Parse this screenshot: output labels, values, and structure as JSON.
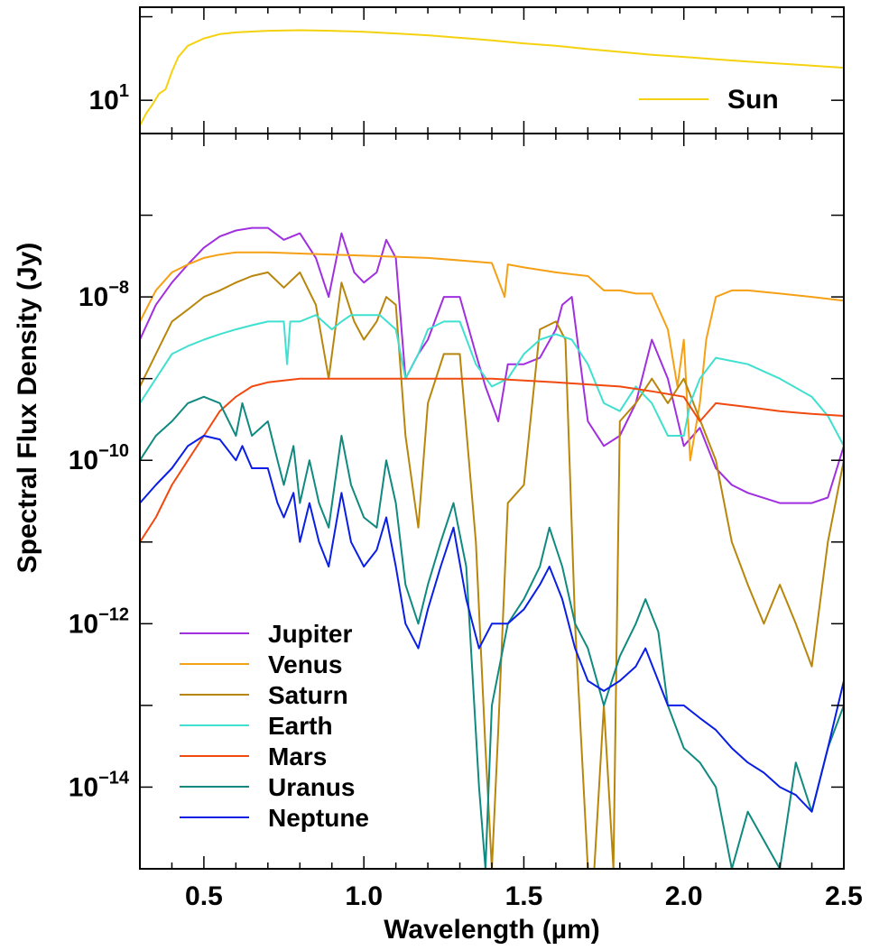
{
  "chart_data": [
    {
      "panel": "top",
      "type": "line",
      "xlabel": "",
      "ylabel": "",
      "xlim": [
        0.3,
        2.5
      ],
      "yscale": "log",
      "ylim": [
        4,
        130
      ],
      "ytick_labels": [
        {
          "value": 10,
          "base": "10",
          "exp": "1"
        }
      ],
      "legend": {
        "placement": "bottom-right",
        "entries": [
          {
            "label": "Sun",
            "color": "#F5D20F"
          }
        ]
      },
      "series": [
        {
          "name": "Sun",
          "color": "#F5D20F",
          "x": [
            0.3,
            0.32,
            0.34,
            0.36,
            0.38,
            0.4,
            0.42,
            0.45,
            0.5,
            0.55,
            0.6,
            0.7,
            0.8,
            0.9,
            1.0,
            1.1,
            1.2,
            1.3,
            1.4,
            1.5,
            1.6,
            1.7,
            1.8,
            1.9,
            2.0,
            2.1,
            2.2,
            2.3,
            2.4,
            2.5
          ],
          "values": [
            5,
            7,
            9,
            12,
            13.5,
            22,
            33,
            45,
            55,
            62,
            65,
            68,
            69,
            68,
            66,
            63,
            60,
            56,
            52,
            48,
            45,
            41,
            38,
            35,
            33,
            31,
            29,
            27.5,
            26,
            24.5
          ]
        }
      ]
    },
    {
      "panel": "bottom",
      "type": "line",
      "xlabel": "Wavelength (µm)",
      "ylabel": "Spectral Flux Density (Jy)",
      "xlim": [
        0.3,
        2.5
      ],
      "yscale": "log",
      "ylim": [
        1e-15,
        1e-06
      ],
      "xtick_labels": [
        "0.5",
        "1.0",
        "1.5",
        "2.0",
        "2.5"
      ],
      "xtick_values": [
        0.5,
        1.0,
        1.5,
        2.0,
        2.5
      ],
      "ytick_labels": [
        {
          "value": 1e-08,
          "base": "10",
          "exp": "−8"
        },
        {
          "value": 1e-10,
          "base": "10",
          "exp": "−10"
        },
        {
          "value": 1e-12,
          "base": "10",
          "exp": "−12"
        },
        {
          "value": 1e-14,
          "base": "10",
          "exp": "−14"
        }
      ],
      "legend": {
        "placement": "bottom-left"
      },
      "series": [
        {
          "name": "Jupiter",
          "color": "#A02FE0",
          "x": [
            0.3,
            0.35,
            0.4,
            0.45,
            0.5,
            0.55,
            0.6,
            0.65,
            0.7,
            0.75,
            0.8,
            0.85,
            0.89,
            0.93,
            0.97,
            1.0,
            1.04,
            1.07,
            1.1,
            1.13,
            1.17,
            1.2,
            1.25,
            1.3,
            1.35,
            1.38,
            1.42,
            1.45,
            1.5,
            1.55,
            1.6,
            1.62,
            1.65,
            1.7,
            1.75,
            1.8,
            1.85,
            1.9,
            1.95,
            2.0,
            2.05,
            2.1,
            2.15,
            2.2,
            2.3,
            2.4,
            2.45,
            2.5
          ],
          "values": [
            3e-09,
            8e-09,
            1.5e-08,
            2.5e-08,
            4e-08,
            5.5e-08,
            6.5e-08,
            7e-08,
            7e-08,
            5e-08,
            6e-08,
            3e-08,
            1e-08,
            6e-08,
            2e-08,
            1.5e-08,
            2e-08,
            5e-08,
            3e-08,
            1e-09,
            2e-09,
            3e-09,
            1e-08,
            1e-08,
            2e-09,
            8e-10,
            3e-10,
            1.5e-09,
            1.5e-09,
            1.8e-09,
            4e-09,
            8e-09,
            1e-08,
            3e-10,
            1.5e-10,
            2e-10,
            5e-10,
            3e-09,
            1e-09,
            1.5e-10,
            2.5e-10,
            8e-11,
            5e-11,
            4e-11,
            3e-11,
            3e-11,
            3.5e-11,
            1.5e-10
          ]
        },
        {
          "name": "Venus",
          "color": "#F5A015",
          "x": [
            0.3,
            0.35,
            0.4,
            0.45,
            0.5,
            0.55,
            0.6,
            0.7,
            0.8,
            0.9,
            1.0,
            1.1,
            1.2,
            1.3,
            1.4,
            1.44,
            1.45,
            1.5,
            1.6,
            1.7,
            1.75,
            1.8,
            1.85,
            1.9,
            1.95,
            1.98,
            2.0,
            2.02,
            2.05,
            2.07,
            2.1,
            2.15,
            2.2,
            2.3,
            2.4,
            2.5
          ],
          "values": [
            5e-09,
            1.2e-08,
            2e-08,
            2.5e-08,
            3e-08,
            3.3e-08,
            3.5e-08,
            3.5e-08,
            3.4e-08,
            3.3e-08,
            3.2e-08,
            3.1e-08,
            3e-08,
            2.8e-08,
            2.6e-08,
            1e-08,
            2.5e-08,
            2.3e-08,
            2e-08,
            1.8e-08,
            1.2e-08,
            1.2e-08,
            1.1e-08,
            1.1e-08,
            4e-09,
            8e-10,
            3e-09,
            1e-10,
            5e-10,
            3e-09,
            1e-08,
            1.2e-08,
            1.2e-08,
            1.1e-08,
            1e-08,
            9e-09
          ]
        },
        {
          "name": "Saturn",
          "color": "#B8860B",
          "x": [
            0.3,
            0.35,
            0.4,
            0.45,
            0.5,
            0.55,
            0.6,
            0.65,
            0.7,
            0.75,
            0.8,
            0.85,
            0.89,
            0.93,
            0.97,
            1.0,
            1.04,
            1.07,
            1.1,
            1.13,
            1.17,
            1.2,
            1.25,
            1.3,
            1.35,
            1.38,
            1.4,
            1.42,
            1.45,
            1.5,
            1.55,
            1.6,
            1.63,
            1.66,
            1.7,
            1.72,
            1.75,
            1.78,
            1.8,
            1.85,
            1.9,
            1.95,
            2.0,
            2.1,
            2.15,
            2.2,
            2.25,
            2.3,
            2.35,
            2.4,
            2.45,
            2.5
          ],
          "values": [
            8e-10,
            2e-09,
            5e-09,
            7e-09,
            1e-08,
            1.2e-08,
            1.5e-08,
            1.8e-08,
            2e-08,
            1.3e-08,
            2e-08,
            8e-09,
            1e-09,
            1.5e-08,
            5e-09,
            3e-09,
            5e-09,
            1e-08,
            8e-09,
            2e-10,
            1.5e-11,
            5e-10,
            2e-09,
            2e-09,
            1e-11,
            3e-14,
            1e-15,
            5e-14,
            3e-11,
            5e-11,
            4e-09,
            5e-09,
            3e-09,
            1e-12,
            1e-15,
            1e-15,
            1e-13,
            1e-15,
            3e-10,
            5e-10,
            1e-09,
            5e-10,
            1e-09,
            1e-10,
            1e-11,
            3e-12,
            1e-12,
            3e-12,
            1e-12,
            3e-13,
            1e-11,
            1e-10
          ]
        },
        {
          "name": "Earth",
          "color": "#40E0D0",
          "x": [
            0.3,
            0.35,
            0.4,
            0.45,
            0.5,
            0.55,
            0.6,
            0.65,
            0.7,
            0.75,
            0.76,
            0.77,
            0.8,
            0.85,
            0.9,
            0.93,
            0.96,
            1.0,
            1.05,
            1.1,
            1.13,
            1.17,
            1.2,
            1.25,
            1.3,
            1.35,
            1.4,
            1.45,
            1.5,
            1.55,
            1.6,
            1.65,
            1.7,
            1.75,
            1.8,
            1.85,
            1.9,
            1.95,
            2.0,
            2.02,
            2.05,
            2.1,
            2.2,
            2.3,
            2.4,
            2.45,
            2.5
          ],
          "values": [
            5e-10,
            1e-09,
            2e-09,
            2.5e-09,
            3e-09,
            3.5e-09,
            4e-09,
            4.5e-09,
            5e-09,
            5e-09,
            1.5e-09,
            5e-09,
            5e-09,
            6e-09,
            4e-09,
            5e-09,
            6e-09,
            6e-09,
            6e-09,
            4e-09,
            1e-09,
            2e-09,
            4e-09,
            5e-09,
            5e-09,
            1.5e-09,
            8e-10,
            1e-09,
            2e-09,
            3e-09,
            3.5e-09,
            3e-09,
            1.5e-09,
            5e-10,
            4e-10,
            8e-10,
            5e-10,
            2e-10,
            2e-10,
            5e-10,
            1e-09,
            1.8e-09,
            1.5e-09,
            1e-09,
            6e-10,
            3.5e-10,
            1.5e-10
          ]
        },
        {
          "name": "Mars",
          "color": "#F04A10",
          "x": [
            0.3,
            0.35,
            0.4,
            0.45,
            0.5,
            0.55,
            0.6,
            0.65,
            0.7,
            0.8,
            0.9,
            1.0,
            1.1,
            1.2,
            1.3,
            1.4,
            1.5,
            1.6,
            1.7,
            1.8,
            1.9,
            2.0,
            2.05,
            2.1,
            2.2,
            2.3,
            2.4,
            2.5
          ],
          "values": [
            1e-11,
            2e-11,
            5e-11,
            1e-10,
            2e-10,
            4e-10,
            6e-10,
            8e-10,
            9e-10,
            1e-09,
            1e-09,
            1e-09,
            1e-09,
            1e-09,
            1e-09,
            1e-09,
            9.5e-10,
            9e-10,
            8.5e-10,
            8e-10,
            7e-10,
            6e-10,
            3e-10,
            5e-10,
            4.5e-10,
            4e-10,
            3.7e-10,
            3.5e-10
          ]
        },
        {
          "name": "Uranus",
          "color": "#108A80",
          "x": [
            0.3,
            0.35,
            0.4,
            0.45,
            0.5,
            0.55,
            0.6,
            0.62,
            0.65,
            0.7,
            0.73,
            0.75,
            0.78,
            0.8,
            0.83,
            0.86,
            0.89,
            0.93,
            0.96,
            1.0,
            1.04,
            1.07,
            1.1,
            1.13,
            1.17,
            1.2,
            1.24,
            1.28,
            1.32,
            1.36,
            1.38,
            1.4,
            1.45,
            1.5,
            1.55,
            1.58,
            1.62,
            1.66,
            1.7,
            1.75,
            1.8,
            1.85,
            1.88,
            1.92,
            1.95,
            2.0,
            2.05,
            2.1,
            2.15,
            2.2,
            2.3,
            2.35,
            2.4,
            2.45,
            2.5
          ],
          "values": [
            1e-10,
            2e-10,
            3e-10,
            5e-10,
            6e-10,
            5e-10,
            2e-10,
            5e-10,
            2e-10,
            3e-10,
            1e-10,
            5e-11,
            1.5e-10,
            3e-11,
            1e-10,
            3e-11,
            1.5e-11,
            2e-10,
            5e-11,
            2e-11,
            1.5e-11,
            1e-10,
            3e-11,
            3e-12,
            1e-12,
            3e-12,
            1e-11,
            3e-11,
            5e-12,
            1e-14,
            1e-15,
            1e-13,
            1e-12,
            2e-12,
            5e-12,
            1.5e-11,
            5e-12,
            1e-12,
            5e-13,
            1e-13,
            4e-13,
            1e-12,
            2e-12,
            8e-13,
            1e-13,
            3e-14,
            2e-14,
            1e-14,
            1e-15,
            5e-15,
            1e-15,
            2e-14,
            5e-15,
            3e-14,
            1e-13
          ]
        },
        {
          "name": "Neptune",
          "color": "#0A1EE6",
          "x": [
            0.3,
            0.35,
            0.4,
            0.45,
            0.5,
            0.55,
            0.6,
            0.62,
            0.65,
            0.7,
            0.73,
            0.75,
            0.78,
            0.8,
            0.83,
            0.86,
            0.89,
            0.93,
            0.96,
            1.0,
            1.04,
            1.07,
            1.1,
            1.13,
            1.17,
            1.2,
            1.24,
            1.28,
            1.32,
            1.36,
            1.4,
            1.45,
            1.5,
            1.55,
            1.58,
            1.62,
            1.66,
            1.7,
            1.75,
            1.8,
            1.85,
            1.88,
            1.92,
            1.95,
            2.0,
            2.05,
            2.1,
            2.15,
            2.2,
            2.25,
            2.3,
            2.35,
            2.4,
            2.45,
            2.5
          ],
          "values": [
            3e-11,
            5e-11,
            8e-11,
            1.5e-10,
            2e-10,
            1.8e-10,
            1e-10,
            1.5e-10,
            8e-11,
            8e-11,
            3e-11,
            2e-11,
            4e-11,
            1e-11,
            3e-11,
            1e-11,
            5e-12,
            4e-11,
            1e-11,
            5e-12,
            8e-12,
            2e-11,
            5e-12,
            1e-12,
            5e-13,
            1.5e-12,
            5e-12,
            1.5e-11,
            2e-12,
            5e-13,
            1e-12,
            1e-12,
            1.5e-12,
            3e-12,
            5e-12,
            2e-12,
            5e-13,
            2e-13,
            1.5e-13,
            2e-13,
            3e-13,
            5e-13,
            2e-13,
            1e-13,
            1e-13,
            7e-14,
            5e-14,
            3e-14,
            2e-14,
            1.5e-14,
            1e-14,
            8e-15,
            5e-15,
            3e-14,
            2e-13
          ]
        }
      ]
    }
  ]
}
